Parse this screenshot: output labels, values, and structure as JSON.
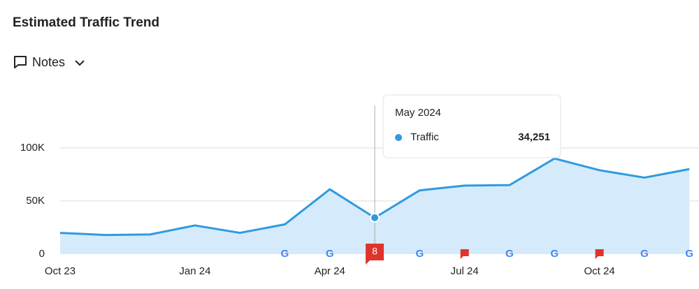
{
  "chart_data": {
    "type": "area",
    "title": "Estimated Traffic Trend",
    "categories": [
      "Oct 23",
      null,
      null,
      "Jan 24",
      null,
      null,
      "Apr 24",
      null,
      null,
      "Jul 24",
      null,
      null,
      "Oct 24",
      null,
      null
    ],
    "series": [
      {
        "name": "Traffic",
        "color": "#2f9ae0",
        "fill": "#d5ebfb",
        "values": [
          20000,
          18000,
          18500,
          27000,
          20000,
          28000,
          61000,
          34251,
          60000,
          64500,
          65000,
          90000,
          79000,
          72000,
          80000
        ],
        "value_labels": [
          null,
          null,
          null,
          null,
          null,
          null,
          null,
          "34,251",
          null,
          null,
          null,
          null,
          null,
          null,
          null
        ]
      }
    ],
    "tooltip_title": "May 2024",
    "ylim": [
      0,
      140000
    ],
    "yticks": [
      0,
      {
        "value": 50000,
        "label": "50K"
      },
      {
        "value": 100000,
        "label": "100K"
      }
    ],
    "grid": true,
    "events": [
      null,
      null,
      null,
      null,
      null,
      {
        "type": "google"
      },
      {
        "type": "google"
      },
      {
        "type": "note",
        "label": "8"
      },
      {
        "type": "google"
      },
      {
        "type": "note"
      },
      {
        "type": "google"
      },
      {
        "type": "google"
      },
      {
        "type": "note"
      },
      {
        "type": "google"
      },
      {
        "type": "google"
      }
    ]
  },
  "controls": {
    "notes": "Notes"
  }
}
